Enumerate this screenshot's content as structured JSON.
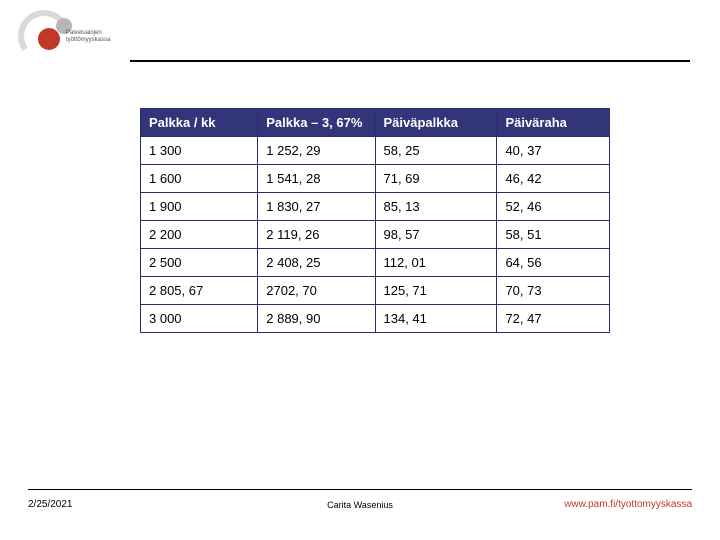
{
  "logo": {
    "line1": "Palvelualojen",
    "line2": "työttömyyskassa",
    "sub": ""
  },
  "table": {
    "columns": [
      "Palkka / kk",
      "Palkka – 3, 67%",
      "Päiväpalkka",
      "Päiväraha"
    ],
    "column_widths": [
      "25%",
      "25%",
      "26%",
      "24%"
    ],
    "header_bg": "#32357a",
    "header_fg": "#ffffff",
    "border_color": "#2a2f6b",
    "cell_bg": "#ffffff",
    "cell_fg": "#000000",
    "font_size": 13,
    "rows": [
      [
        "1 300",
        "1 252, 29",
        "58, 25",
        "40, 37"
      ],
      [
        "1 600",
        "1 541, 28",
        "71, 69",
        "46, 42"
      ],
      [
        "1 900",
        "1 830, 27",
        "85, 13",
        "52, 46"
      ],
      [
        "2 200",
        "2 119, 26",
        "98, 57",
        "58, 51"
      ],
      [
        "2 500",
        "2 408, 25",
        "112, 01",
        "64, 56"
      ],
      [
        "2 805, 67",
        "2702, 70",
        "125, 71",
        "70, 73"
      ],
      [
        "3 000",
        "2 889, 90",
        "134, 41",
        "72, 47"
      ]
    ]
  },
  "footer": {
    "date": "2/25/2021",
    "author": "Carita Wasenius",
    "url": "www.pam.fi/tyottomyyskassa"
  }
}
